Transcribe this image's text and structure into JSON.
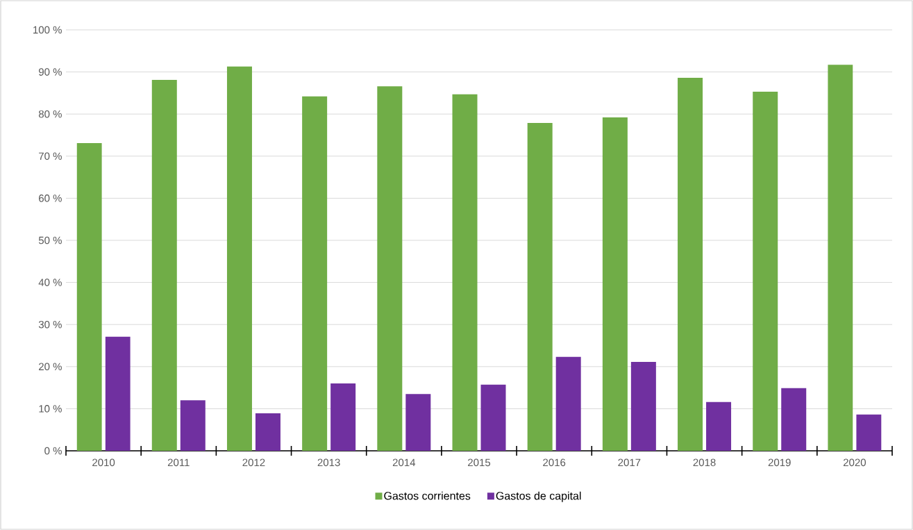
{
  "chart_data": {
    "type": "bar",
    "categories": [
      "2010",
      "2011",
      "2012",
      "2013",
      "2014",
      "2015",
      "2016",
      "2017",
      "2018",
      "2019",
      "2020"
    ],
    "series": [
      {
        "name": "Gastos corrientes",
        "color": "#70ad47",
        "values": [
          73.1,
          88.1,
          91.3,
          84.2,
          86.6,
          84.7,
          77.9,
          79.2,
          88.6,
          85.3,
          91.7
        ]
      },
      {
        "name": "Gastos de capital",
        "color": "#7030a0",
        "values": [
          27.1,
          12.0,
          8.9,
          16.0,
          13.5,
          15.7,
          22.3,
          21.1,
          11.6,
          14.9,
          8.6
        ]
      }
    ],
    "ylim": [
      0,
      100
    ],
    "yticks": [
      {
        "value": 0,
        "label": "0 %"
      },
      {
        "value": 10,
        "label": "10 %"
      },
      {
        "value": 20,
        "label": "20 %"
      },
      {
        "value": 30,
        "label": "30 %"
      },
      {
        "value": 40,
        "label": "40 %"
      },
      {
        "value": 50,
        "label": "50 %"
      },
      {
        "value": 60,
        "label": "60 %"
      },
      {
        "value": 70,
        "label": "70 %"
      },
      {
        "value": 80,
        "label": "80 %"
      },
      {
        "value": 90,
        "label": "90 %"
      },
      {
        "value": 100,
        "label": "100 %"
      }
    ],
    "grid": "y",
    "legend": "bottom"
  }
}
